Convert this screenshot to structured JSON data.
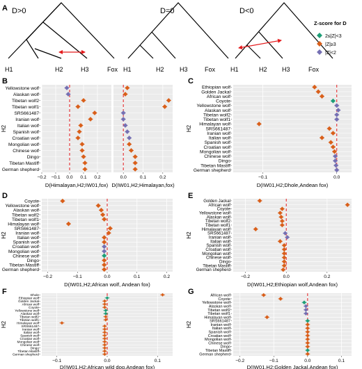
{
  "colors": {
    "green": "#1e9e77",
    "orange": "#d95f1a",
    "purple": "#7570b3",
    "dashed": "#e41a1c",
    "arrow": "#e41a1c",
    "panel_bg": "#ebebeb",
    "grid": "#ffffff",
    "tree": "#000000"
  },
  "panel_a": {
    "letter": "A",
    "trees": [
      {
        "label": "D>0",
        "leaves": [
          "H1",
          "H2",
          "H3",
          "Fox"
        ],
        "arrow": "H2-H3"
      },
      {
        "label": "D=0",
        "leaves": [
          "H1",
          "H2",
          "H3",
          "Fox"
        ],
        "arrow": ""
      },
      {
        "label": "D<0",
        "leaves": [
          "H1",
          "H2",
          "H3",
          "Fox"
        ],
        "arrow": "H1-H3"
      }
    ]
  },
  "legend": {
    "title": "Z-score for D",
    "items": [
      {
        "label": "2≤|Z|<3",
        "color_key": "green"
      },
      {
        "label": "|Z|≥3",
        "color_key": "orange"
      },
      {
        "label": "|Z|<2",
        "color_key": "purple"
      }
    ]
  },
  "chart_data": [
    {
      "letter": "B",
      "type": "scatter",
      "ylabel": "H2",
      "categories": [
        "Yellowstone wolf",
        "Alaskan wolf",
        "Tibetan wolf2",
        "Tibetan wolf1",
        "SRS661487",
        "Iranian wolf",
        "Italian wolf",
        "Spanish wolf",
        "Croatian wolf",
        "Mongolian wolf",
        "Chinese wolf",
        "Dingo",
        "Tibetan Mastiff",
        "German shepherd"
      ],
      "facets": [
        {
          "xlabel": "D(Himalayan,H2;IW01,fox)",
          "xlim": [
            -0.2,
            0.3
          ],
          "ticks": [
            -0.2,
            -0.1,
            0.0,
            0.1,
            0.2
          ],
          "tick_labels": [
            "−0.2",
            "−0.1",
            "0.0",
            "0.1",
            "0.2"
          ],
          "values": [
            -0.02,
            -0.01,
            0.1,
            0.06,
            0.18,
            0.15,
            0.08,
            0.07,
            0.06,
            0.09,
            0.09,
            0.1,
            0.11,
            0.11
          ],
          "z": [
            "purple",
            "purple",
            "orange",
            "orange",
            "orange",
            "orange",
            "orange",
            "orange",
            "orange",
            "orange",
            "orange",
            "orange",
            "orange",
            "orange"
          ]
        },
        {
          "xlabel": "D(IW01,H2;Himalayan,fox)",
          "xlim": [
            -0.05,
            0.25
          ],
          "ticks": [
            0.0,
            0.1,
            0.2
          ],
          "tick_labels": [
            "0.0",
            "0.1",
            "0.2"
          ],
          "values": [
            0.02,
            0.01,
            0.23,
            0.21,
            0.0,
            0.0,
            0.01,
            0.02,
            0.03,
            0.03,
            0.04,
            0.06,
            0.06,
            0.06
          ],
          "z": [
            "orange",
            "orange",
            "orange",
            "orange",
            "purple",
            "purple",
            "purple",
            "purple",
            "purple",
            "orange",
            "orange",
            "orange",
            "orange",
            "orange"
          ]
        }
      ]
    },
    {
      "letter": "C",
      "type": "scatter",
      "ylabel": "H2",
      "xlabel": "D(IW01,H2;Dhole,Andean fox)",
      "xlim": [
        -0.14,
        0.02
      ],
      "ticks": [
        -0.1,
        0.0
      ],
      "tick_labels": [
        "−0.1",
        "0.0"
      ],
      "categories": [
        "Ethiopian wolf",
        "Golden Jackal",
        "African wolf",
        "Coyote",
        "Yellowstone wolf",
        "Alaskan wolf",
        "Tibetan wolf2",
        "Tibetan wolf1",
        "Himalayan wolf",
        "SRS661487",
        "Iranian wolf",
        "Italian wolf",
        "Spanish wolf",
        "Croatian wolf",
        "Mongolian wolf",
        "Chinese wolf",
        "Dingo",
        "Tibetan Mastiff",
        "German shepherd"
      ],
      "values": [
        -0.03,
        -0.025,
        -0.02,
        -0.005,
        0.0,
        0.002,
        0.0,
        0.0,
        -0.105,
        -0.01,
        -0.005,
        -0.02,
        -0.008,
        -0.005,
        -0.003,
        -0.002,
        -0.002,
        -0.001,
        0.0
      ],
      "z": [
        "orange",
        "orange",
        "orange",
        "green",
        "purple",
        "purple",
        "purple",
        "purple",
        "orange",
        "orange",
        "orange",
        "orange",
        "orange",
        "orange",
        "orange",
        "purple",
        "purple",
        "purple",
        "purple"
      ]
    },
    {
      "letter": "D",
      "type": "scatter",
      "ylabel": "H2",
      "xlabel": "D(IW01,H2;African wolf, Andean fox)",
      "xlim": [
        -0.22,
        0.22
      ],
      "ticks": [
        -0.2,
        -0.1,
        0.0,
        0.1,
        0.2
      ],
      "tick_labels": [
        "−0.2",
        "−0.1",
        "0.0",
        "0.1",
        "0.2"
      ],
      "categories": [
        "Coyote",
        "Yellowstone wolf",
        "Alaskan wolf",
        "Tibetan wolf2",
        "Tibetan wolf1",
        "Himalayan wolf",
        "SRS661487",
        "Iranian wolf",
        "Italian wolf",
        "Spanish wolf",
        "Croatian wolf",
        "Mongolian wolf",
        "Chinese wolf",
        "Dingo",
        "Tibetan Mastiff",
        "German shepherd"
      ],
      "values": [
        -0.15,
        -0.03,
        -0.02,
        -0.015,
        -0.01,
        -0.13,
        0.01,
        0.005,
        -0.01,
        -0.01,
        -0.01,
        -0.01,
        -0.01,
        -0.01,
        -0.01,
        -0.01
      ],
      "z": [
        "orange",
        "orange",
        "orange",
        "orange",
        "orange",
        "orange",
        "orange",
        "orange",
        "orange",
        "orange",
        "purple",
        "purple",
        "green",
        "orange",
        "orange",
        "orange"
      ]
    },
    {
      "letter": "E",
      "type": "scatter",
      "ylabel": "H2",
      "xlabel": "D(IW01,H2;Ethiopian wolf,Andean fox)",
      "xlim": [
        -0.26,
        0.32
      ],
      "ticks": [
        -0.2,
        0.0,
        0.2
      ],
      "tick_labels": [
        "−0.2",
        "0.0",
        "0.2"
      ],
      "categories": [
        "Golden Jackal",
        "African wolf",
        "Coyote",
        "Yellowstone wolf",
        "Alaskan wolf",
        "Tibetan wolf2",
        "Tibetan wolf1",
        "Himalayan wolf",
        "SRS661487",
        "Iranian wolf",
        "Italian wolf",
        "Spanish wolf",
        "Croatian wolf",
        "Mongolian wolf",
        "Chinese wolf",
        "Dingo",
        "Tibetan Mastiff",
        "German shepherd"
      ],
      "values": [
        -0.13,
        0.3,
        -0.02,
        -0.03,
        -0.025,
        -0.02,
        -0.02,
        -0.15,
        -0.005,
        0.005,
        -0.03,
        -0.01,
        -0.01,
        -0.01,
        -0.01,
        -0.01,
        -0.01,
        -0.015
      ],
      "z": [
        "orange",
        "orange",
        "orange",
        "orange",
        "orange",
        "orange",
        "orange",
        "orange",
        "purple",
        "purple",
        "orange",
        "orange",
        "orange",
        "orange",
        "orange",
        "orange",
        "orange",
        "orange"
      ]
    },
    {
      "letter": "F",
      "type": "scatter",
      "ylabel": "H2",
      "xlabel": "D(IW01,H2;African wild dog,Andean fox)",
      "xlim": [
        -0.13,
        0.13
      ],
      "ticks": [
        -0.1,
        0.0,
        0.1
      ],
      "tick_labels": [
        "−0.1",
        "0.0",
        "0.1"
      ],
      "categories": [
        "Dhole",
        "Ethiopian wolf",
        "Golden Jackal",
        "African wolf",
        "Coyote",
        "Yellowstone wolf",
        "Alaskan wolf",
        "Tibetan wolf2",
        "Tibetan wolf1",
        "Himalayan wolf",
        "SRS661487",
        "Iranian wolf",
        "Italian wolf",
        "Spanish wolf",
        "Croatian wolf",
        "Mongolian wolf",
        "Chinese wolf",
        "Dingo",
        "Tibetan Mastiff",
        "German shepherd"
      ],
      "values": [
        0.11,
        0.0,
        -0.005,
        -0.005,
        -0.005,
        -0.003,
        -0.003,
        -0.003,
        -0.003,
        -0.09,
        -0.005,
        -0.005,
        -0.005,
        -0.005,
        -0.005,
        -0.005,
        -0.005,
        -0.005,
        -0.005,
        -0.005
      ],
      "z": [
        "orange",
        "green",
        "orange",
        "orange",
        "orange",
        "green",
        "green",
        "orange",
        "orange",
        "orange",
        "orange",
        "orange",
        "orange",
        "orange",
        "orange",
        "orange",
        "orange",
        "orange",
        "orange",
        "orange"
      ]
    },
    {
      "letter": "G",
      "type": "scatter",
      "ylabel": "H2",
      "xlabel": "D(IW01,H2;Golden Jackal,Andean fox)",
      "xlim": [
        -0.22,
        0.13
      ],
      "ticks": [
        -0.2,
        -0.1,
        0.0,
        0.1
      ],
      "tick_labels": [
        "−0.2",
        "−0.1",
        "0.0",
        "0.1"
      ],
      "categories": [
        "African wolf",
        "Coyote",
        "Yellowstone wolf",
        "Alaskan wolf",
        "Tibetan wolf2",
        "Tibetan wolf1",
        "Himalayan wolf",
        "SRS661487",
        "Iranian wolf",
        "Italian wolf",
        "Spanish wolf",
        "Croatian wolf",
        "Mongolian wolf",
        "Chinese wolf",
        "Dingo",
        "Tibetan Mastiff",
        "German shepherd"
      ],
      "values": [
        -0.13,
        -0.08,
        -0.01,
        -0.005,
        -0.005,
        -0.005,
        -0.12,
        0.0,
        0.0,
        0.0,
        0.0,
        0.0,
        0.0,
        0.0,
        0.0,
        0.0,
        0.0
      ],
      "z": [
        "orange",
        "orange",
        "green",
        "purple",
        "purple",
        "purple",
        "orange",
        "green",
        "orange",
        "orange",
        "orange",
        "orange",
        "orange",
        "orange",
        "orange",
        "green",
        "orange"
      ]
    }
  ]
}
